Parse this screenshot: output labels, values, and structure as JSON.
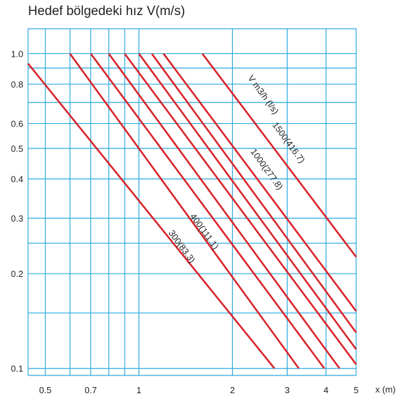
{
  "chart_data": {
    "type": "line",
    "title": "Hedef bölgedeki hız V(m/s)",
    "xlabel": "x (m)",
    "ylabel": "",
    "xscale": "log",
    "yscale": "log",
    "xlim": [
      0.44,
      5
    ],
    "ylim": [
      0.095,
      1.2
    ],
    "grid": true,
    "x_ticks": [
      0.5,
      0.7,
      1,
      2,
      3,
      4,
      5
    ],
    "x_tick_labels": [
      "0.5",
      "0.7",
      "1",
      "2",
      "3",
      "4",
      "5"
    ],
    "x_grid": [
      0.5,
      0.6,
      0.7,
      0.8,
      0.9,
      1,
      2,
      3,
      4,
      5
    ],
    "y_ticks": [
      0.1,
      0.2,
      0.3,
      0.4,
      0.5,
      0.6,
      0.8,
      1.0
    ],
    "y_tick_labels": [
      "0.1",
      "0.2",
      "0.3",
      "0.4",
      "0.5",
      "0.6",
      "0.8",
      "1.0"
    ],
    "y_grid": [
      0.1,
      0.15,
      0.2,
      0.25,
      0.3,
      0.4,
      0.5,
      0.6,
      0.7,
      0.8,
      0.9,
      1.0
    ],
    "series_header": "V m3/h (l/s)",
    "series": [
      {
        "name": "300(83.3)",
        "points": [
          [
            0.44,
            0.93
          ],
          [
            2.73,
            0.1
          ]
        ]
      },
      {
        "name": "",
        "points": [
          [
            0.6,
            1.0
          ],
          [
            3.27,
            0.1
          ]
        ]
      },
      {
        "name": "400(111.1)",
        "points": [
          [
            0.7,
            1.0
          ],
          [
            3.95,
            0.1
          ]
        ]
      },
      {
        "name": "",
        "points": [
          [
            0.8,
            1.0
          ],
          [
            4.42,
            0.1
          ]
        ]
      },
      {
        "name": "",
        "points": [
          [
            0.9,
            1.0
          ],
          [
            5.0,
            0.103
          ]
        ]
      },
      {
        "name": "1000(277.8)",
        "points": [
          [
            1.0,
            1.0
          ],
          [
            5.0,
            0.115
          ]
        ]
      },
      {
        "name": "",
        "points": [
          [
            1.1,
            1.0
          ],
          [
            5.0,
            0.13
          ]
        ]
      },
      {
        "name": "",
        "points": [
          [
            1.2,
            1.0
          ],
          [
            5.0,
            0.152
          ]
        ]
      },
      {
        "name": "1500(416.7)",
        "points": [
          [
            1.6,
            1.0
          ],
          [
            5.0,
            0.226
          ]
        ]
      }
    ],
    "line_color": "#d8232a",
    "grid_color": "#29a8e0"
  }
}
